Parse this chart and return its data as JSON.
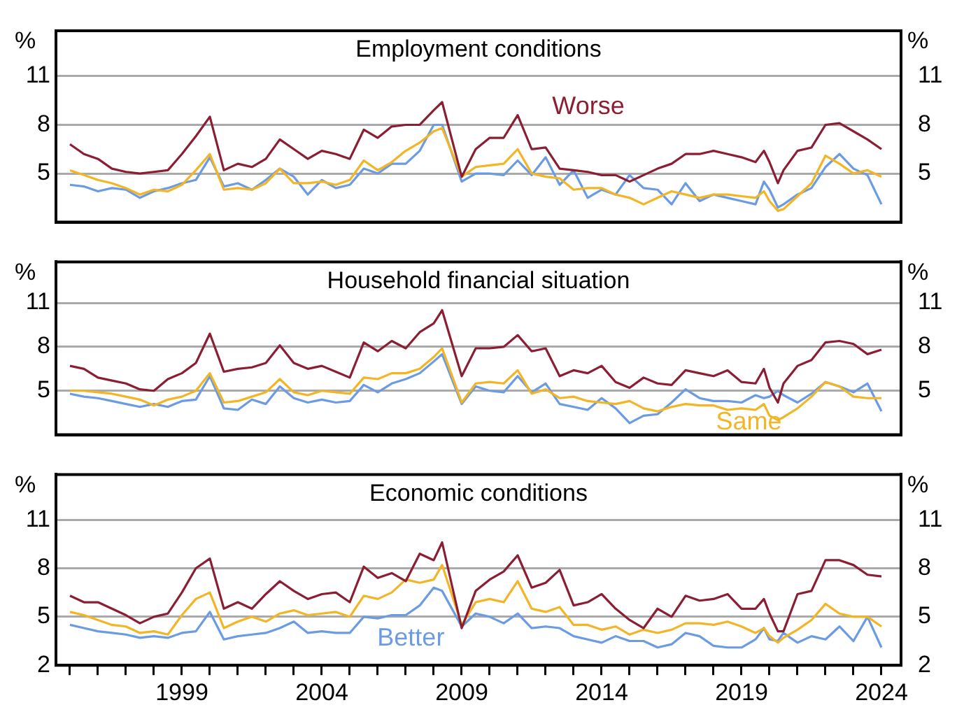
{
  "chart_data": [
    {
      "type": "line",
      "title": "Employment conditions",
      "ylabel": "%",
      "y2label": "%",
      "grid": "y",
      "marker": "none",
      "line_style": "solid",
      "tick_labels": "y",
      "xlim": [
        1994.5,
        2024.7
      ],
      "ylim": [
        2,
        13.8
      ],
      "yticks": [
        5,
        8,
        11
      ],
      "y2lim": [
        2,
        13.8
      ],
      "y2ticks": [
        5,
        8,
        11
      ],
      "x": [
        1995,
        1995.5,
        1996,
        1996.5,
        1997,
        1997.5,
        1998,
        1998.5,
        1999,
        1999.5,
        2000,
        2000.5,
        2001,
        2001.5,
        2002,
        2002.5,
        2003,
        2003.5,
        2004,
        2004.5,
        2005,
        2005.5,
        2006,
        2006.5,
        2007,
        2007.5,
        2008,
        2008.3,
        2009,
        2009.5,
        2010,
        2010.5,
        2011,
        2011.5,
        2012,
        2012.5,
        2013,
        2013.5,
        2014,
        2014.5,
        2015,
        2015.5,
        2016,
        2016.5,
        2017,
        2017.5,
        2018,
        2018.5,
        2019,
        2019.5,
        2019.8,
        2020,
        2020.3,
        2020.5,
        2021,
        2021.5,
        2022,
        2022.5,
        2023,
        2023.5,
        2024
      ],
      "series": [
        {
          "name": "Worse",
          "color": "#8b1e32",
          "values": [
            6.8,
            6.2,
            5.9,
            5.3,
            5.1,
            5.0,
            5.1,
            5.2,
            6.2,
            7.3,
            8.5,
            5.2,
            5.6,
            5.4,
            5.9,
            7.1,
            6.5,
            5.9,
            6.4,
            6.2,
            5.9,
            7.7,
            7.2,
            7.9,
            8.0,
            8.0,
            8.9,
            9.4,
            4.8,
            6.5,
            7.2,
            7.2,
            8.6,
            6.5,
            6.6,
            5.3,
            5.2,
            5.1,
            4.9,
            4.9,
            4.5,
            4.9,
            5.3,
            5.6,
            6.2,
            6.2,
            6.4,
            6.2,
            6.0,
            5.7,
            6.4,
            5.7,
            4.4,
            5.2,
            6.4,
            6.6,
            8.0,
            8.1,
            7.6,
            7.1,
            6.5
          ]
        },
        {
          "color": "#f2b526",
          "values": [
            5.2,
            4.9,
            4.6,
            4.4,
            4.1,
            3.7,
            4.0,
            3.9,
            4.3,
            5.2,
            6.2,
            4.0,
            4.1,
            4.0,
            4.4,
            5.3,
            4.4,
            4.4,
            4.5,
            4.3,
            4.6,
            5.8,
            5.2,
            5.7,
            6.4,
            6.9,
            7.6,
            7.8,
            4.8,
            5.4,
            5.5,
            5.6,
            6.5,
            5.0,
            4.8,
            4.7,
            4.0,
            4.1,
            4.1,
            3.7,
            3.5,
            3.1,
            3.5,
            3.9,
            3.7,
            3.5,
            3.7,
            3.7,
            3.6,
            3.5,
            3.9,
            3.3,
            2.7,
            2.8,
            3.6,
            4.4,
            6.1,
            5.6,
            5.0,
            5.2,
            4.8
          ]
        },
        {
          "color": "#6b9be2",
          "values": [
            4.3,
            4.2,
            3.9,
            4.1,
            4.0,
            3.5,
            3.9,
            4.1,
            4.4,
            4.6,
            6.0,
            4.2,
            4.4,
            4.0,
            4.6,
            5.3,
            4.8,
            3.7,
            4.6,
            4.1,
            4.3,
            5.3,
            5.0,
            5.6,
            5.6,
            6.4,
            8.0,
            8.0,
            4.5,
            5.0,
            5.0,
            4.9,
            5.8,
            4.9,
            6.0,
            4.3,
            5.2,
            3.5,
            4.0,
            3.7,
            4.9,
            4.1,
            4.0,
            3.1,
            4.4,
            3.3,
            3.7,
            3.5,
            3.3,
            3.1,
            4.5,
            4.0,
            2.9,
            3.1,
            3.7,
            4.1,
            5.4,
            6.2,
            5.3,
            4.9,
            3.1
          ]
        }
      ]
    },
    {
      "type": "line",
      "title": "Household financial situation",
      "ylabel": "%",
      "y2label": "%",
      "grid": "y",
      "marker": "none",
      "line_style": "solid",
      "tick_labels": "y",
      "xlim": [
        1994.5,
        2024.7
      ],
      "ylim": [
        2,
        13.8
      ],
      "yticks": [
        5,
        8,
        11
      ],
      "y2lim": [
        2,
        13.8
      ],
      "y2ticks": [
        5,
        8,
        11
      ],
      "x": [
        1995,
        1995.5,
        1996,
        1996.5,
        1997,
        1997.5,
        1998,
        1998.5,
        1999,
        1999.5,
        2000,
        2000.5,
        2001,
        2001.5,
        2002,
        2002.5,
        2003,
        2003.5,
        2004,
        2004.5,
        2005,
        2005.5,
        2006,
        2006.5,
        2007,
        2007.5,
        2008,
        2008.3,
        2009,
        2009.5,
        2010,
        2010.5,
        2011,
        2011.5,
        2012,
        2012.5,
        2013,
        2013.5,
        2014,
        2014.5,
        2015,
        2015.5,
        2016,
        2016.5,
        2017,
        2017.5,
        2018,
        2018.5,
        2019,
        2019.5,
        2019.8,
        2020,
        2020.3,
        2020.5,
        2021,
        2021.5,
        2022,
        2022.5,
        2023,
        2023.5,
        2024
      ],
      "series": [
        {
          "color": "#8b1e32",
          "values": [
            6.7,
            6.5,
            5.9,
            5.7,
            5.5,
            5.1,
            5.0,
            5.8,
            6.2,
            6.9,
            8.9,
            6.3,
            6.5,
            6.6,
            6.9,
            8.1,
            6.9,
            6.5,
            6.7,
            6.3,
            5.9,
            8.3,
            7.7,
            8.4,
            7.9,
            9.0,
            9.6,
            10.5,
            6.0,
            7.9,
            7.9,
            8.0,
            8.8,
            7.7,
            7.9,
            6.0,
            6.4,
            6.2,
            6.7,
            5.6,
            5.2,
            5.9,
            5.5,
            5.4,
            6.4,
            6.2,
            6.0,
            6.4,
            5.6,
            5.5,
            6.5,
            5.2,
            4.2,
            5.5,
            6.7,
            7.1,
            8.3,
            8.4,
            8.2,
            7.5,
            7.8
          ]
        },
        {
          "name": "Same",
          "color": "#f2b526",
          "values": [
            5.0,
            5.0,
            4.9,
            4.8,
            4.6,
            4.4,
            4.0,
            4.4,
            4.6,
            5.0,
            6.2,
            4.2,
            4.3,
            4.6,
            4.9,
            5.8,
            4.9,
            4.7,
            5.0,
            4.9,
            4.8,
            5.9,
            5.8,
            6.2,
            6.2,
            6.5,
            7.3,
            7.9,
            4.2,
            5.5,
            5.6,
            5.5,
            6.4,
            4.8,
            5.1,
            4.5,
            4.6,
            4.3,
            4.2,
            4.1,
            4.3,
            3.8,
            3.6,
            3.9,
            4.1,
            4.0,
            4.0,
            3.7,
            3.8,
            3.7,
            4.1,
            3.3,
            3.0,
            3.2,
            3.8,
            4.6,
            5.6,
            5.3,
            4.6,
            4.5,
            4.5
          ]
        },
        {
          "color": "#6b9be2",
          "values": [
            4.8,
            4.6,
            4.5,
            4.3,
            4.1,
            3.9,
            4.1,
            3.9,
            4.3,
            4.4,
            6.0,
            3.8,
            3.7,
            4.4,
            4.1,
            5.3,
            4.5,
            4.2,
            4.4,
            4.2,
            4.3,
            5.4,
            4.9,
            5.5,
            5.8,
            6.2,
            7.0,
            7.5,
            4.1,
            5.3,
            5.0,
            4.9,
            6.0,
            4.9,
            5.5,
            4.1,
            3.9,
            3.7,
            4.5,
            3.8,
            2.8,
            3.3,
            3.4,
            4.2,
            5.1,
            4.5,
            4.3,
            4.3,
            4.2,
            4.7,
            4.5,
            4.6,
            5.0,
            4.7,
            4.2,
            4.8,
            5.6,
            5.3,
            4.9,
            5.5,
            3.6
          ]
        }
      ]
    },
    {
      "type": "line",
      "title": "Economic conditions",
      "ylabel": "%",
      "y2label": "%",
      "grid": "y",
      "marker": "none",
      "line_style": "solid",
      "xlim": [
        1994.5,
        2024.7
      ],
      "ylim": [
        2,
        13.8
      ],
      "yticks": [
        2,
        5,
        8,
        11
      ],
      "y2lim": [
        2,
        13.8
      ],
      "y2ticks": [
        2,
        5,
        8,
        11
      ],
      "xticks": [
        {
          "value": 1995,
          "label": null
        },
        {
          "value": 1996,
          "label": null
        },
        {
          "value": 1997,
          "label": null
        },
        {
          "value": 1998,
          "label": null
        },
        1999,
        {
          "value": 2000,
          "label": null
        },
        {
          "value": 2001,
          "label": null
        },
        {
          "value": 2002,
          "label": null
        },
        {
          "value": 2003,
          "label": null
        },
        2004,
        {
          "value": 2005,
          "label": null
        },
        {
          "value": 2006,
          "label": null
        },
        {
          "value": 2007,
          "label": null
        },
        {
          "value": 2008,
          "label": null
        },
        2009,
        {
          "value": 2010,
          "label": null
        },
        {
          "value": 2011,
          "label": null
        },
        {
          "value": 2012,
          "label": null
        },
        {
          "value": 2013,
          "label": null
        },
        2014,
        {
          "value": 2015,
          "label": null
        },
        {
          "value": 2016,
          "label": null
        },
        {
          "value": 2017,
          "label": null
        },
        {
          "value": 2018,
          "label": null
        },
        2019,
        {
          "value": 2020,
          "label": null
        },
        {
          "value": 2021,
          "label": null
        },
        {
          "value": 2022,
          "label": null
        },
        {
          "value": 2023,
          "label": null
        },
        2024
      ],
      "x": [
        1995,
        1995.5,
        1996,
        1996.5,
        1997,
        1997.5,
        1998,
        1998.5,
        1999,
        1999.5,
        2000,
        2000.5,
        2001,
        2001.5,
        2002,
        2002.5,
        2003,
        2003.5,
        2004,
        2004.5,
        2005,
        2005.5,
        2006,
        2006.5,
        2007,
        2007.5,
        2008,
        2008.3,
        2009,
        2009.5,
        2010,
        2010.5,
        2011,
        2011.5,
        2012,
        2012.5,
        2013,
        2013.5,
        2014,
        2014.5,
        2015,
        2015.5,
        2016,
        2016.5,
        2017,
        2017.5,
        2018,
        2018.5,
        2019,
        2019.5,
        2019.8,
        2020,
        2020.3,
        2020.5,
        2021,
        2021.5,
        2022,
        2022.5,
        2023,
        2023.5,
        2024
      ],
      "series": [
        {
          "color": "#8b1e32",
          "values": [
            6.3,
            5.9,
            5.9,
            5.5,
            5.1,
            4.6,
            5.0,
            5.2,
            6.5,
            8.0,
            8.6,
            5.5,
            5.9,
            5.5,
            6.4,
            7.2,
            6.6,
            6.1,
            6.4,
            6.5,
            5.9,
            8.1,
            7.4,
            7.7,
            7.2,
            8.9,
            8.5,
            9.6,
            4.3,
            6.6,
            7.3,
            7.8,
            8.8,
            6.8,
            7.1,
            7.9,
            5.7,
            5.9,
            6.4,
            5.5,
            4.8,
            4.3,
            5.5,
            5.0,
            6.3,
            6.0,
            6.1,
            6.4,
            5.5,
            5.5,
            6.1,
            5.2,
            4.1,
            4.1,
            6.4,
            6.6,
            8.5,
            8.5,
            8.2,
            7.6,
            7.5
          ]
        },
        {
          "color": "#f2b526",
          "values": [
            5.3,
            5.1,
            4.8,
            4.5,
            4.4,
            4.0,
            4.1,
            3.9,
            5.1,
            6.1,
            6.5,
            4.3,
            4.7,
            5.0,
            4.7,
            5.2,
            5.4,
            5.1,
            5.2,
            5.3,
            5.0,
            6.3,
            6.1,
            6.5,
            7.3,
            7.1,
            7.3,
            8.2,
            4.5,
            5.9,
            6.1,
            5.9,
            7.2,
            5.5,
            5.3,
            5.6,
            4.5,
            4.5,
            4.2,
            4.4,
            3.9,
            4.2,
            4.0,
            4.2,
            4.6,
            4.6,
            4.5,
            4.7,
            4.4,
            4.0,
            4.3,
            3.8,
            3.4,
            3.7,
            4.2,
            4.8,
            5.8,
            5.2,
            5.0,
            5.0,
            4.4
          ]
        },
        {
          "name": "Better",
          "color": "#6b9be2",
          "values": [
            4.5,
            4.3,
            4.1,
            4.0,
            3.9,
            3.7,
            3.8,
            3.7,
            4.0,
            4.1,
            5.3,
            3.6,
            3.8,
            3.9,
            4.0,
            4.3,
            4.7,
            4.0,
            4.1,
            4.0,
            4.0,
            5.0,
            4.9,
            5.1,
            5.1,
            5.7,
            6.8,
            6.6,
            4.4,
            5.2,
            5.0,
            4.6,
            5.2,
            4.3,
            4.4,
            4.3,
            3.8,
            3.6,
            3.4,
            3.8,
            3.5,
            3.5,
            3.1,
            3.3,
            4.0,
            3.8,
            3.2,
            3.1,
            3.1,
            3.6,
            4.3,
            3.6,
            3.5,
            4.0,
            3.4,
            3.8,
            3.6,
            4.4,
            3.5,
            5.0,
            3.1
          ]
        }
      ]
    }
  ]
}
